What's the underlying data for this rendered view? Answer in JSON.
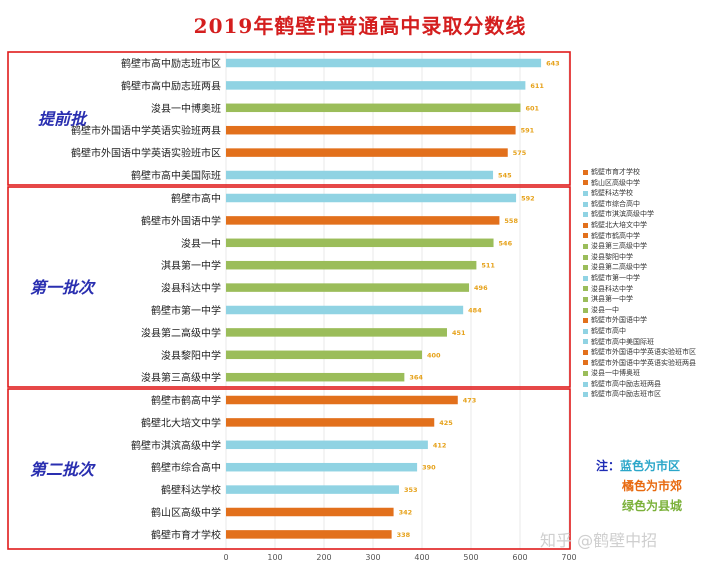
{
  "title": "2019年鹤壁市普通高中录取分数线",
  "chart_data": {
    "type": "bar",
    "orientation": "horizontal",
    "xlim": [
      0,
      700
    ],
    "xticks": [
      0,
      100,
      200,
      300,
      400,
      500,
      600,
      700
    ],
    "grid": true,
    "legend_position": "right",
    "colors": {
      "city": "#90d3e3",
      "suburb": "#e2701c",
      "county": "#9bbd5a",
      "value_label": "#e6a21b",
      "group_border": "#e01b1b",
      "group_label": "#2a2fb0"
    },
    "groups": [
      {
        "label": "提前批",
        "bars": [
          {
            "name": "鹤壁市高中励志班市区",
            "value": 643,
            "cat": "city"
          },
          {
            "name": "鹤壁市高中励志班两县",
            "value": 611,
            "cat": "city"
          },
          {
            "name": "浚县一中博奥班",
            "value": 601,
            "cat": "county"
          },
          {
            "name": "鹤壁市外国语中学英语实验班两县",
            "value": 591,
            "cat": "suburb"
          },
          {
            "name": "鹤壁市外国语中学英语实验班市区",
            "value": 575,
            "cat": "suburb"
          },
          {
            "name": "鹤壁市高中美国际班",
            "value": 545,
            "cat": "city"
          }
        ]
      },
      {
        "label": "第一批次",
        "bars": [
          {
            "name": "鹤壁市高中",
            "value": 592,
            "cat": "city"
          },
          {
            "name": "鹤壁市外国语中学",
            "value": 558,
            "cat": "suburb"
          },
          {
            "name": "浚县一中",
            "value": 546,
            "cat": "county"
          },
          {
            "name": "淇县第一中学",
            "value": 511,
            "cat": "county"
          },
          {
            "name": "浚县科达中学",
            "value": 496,
            "cat": "county"
          },
          {
            "name": "鹤壁市第一中学",
            "value": 484,
            "cat": "city"
          },
          {
            "name": "浚县第二高级中学",
            "value": 451,
            "cat": "county"
          },
          {
            "name": "浚县黎阳中学",
            "value": 400,
            "cat": "county"
          },
          {
            "name": "浚县第三高级中学",
            "value": 364,
            "cat": "county"
          }
        ]
      },
      {
        "label": "第二批次",
        "bars": [
          {
            "name": "鹤壁市鹤高中学",
            "value": 473,
            "cat": "suburb"
          },
          {
            "name": "鹤壁北大培文中学",
            "value": 425,
            "cat": "suburb"
          },
          {
            "name": "鹤壁市淇滨高级中学",
            "value": 412,
            "cat": "city"
          },
          {
            "name": "鹤壁市综合高中",
            "value": 390,
            "cat": "city"
          },
          {
            "name": "鹤壁科达学校",
            "value": 353,
            "cat": "city"
          },
          {
            "name": "鹤山区高级中学",
            "value": 342,
            "cat": "suburb"
          },
          {
            "name": "鹤壁市育才学校",
            "value": 338,
            "cat": "suburb"
          }
        ]
      }
    ],
    "legend": [
      {
        "label": "鹤壁市育才学校",
        "cat": "suburb"
      },
      {
        "label": "鹤山区高级中学",
        "cat": "suburb"
      },
      {
        "label": "鹤壁科达学校",
        "cat": "city"
      },
      {
        "label": "鹤壁市综合高中",
        "cat": "city"
      },
      {
        "label": "鹤壁市淇滨高级中学",
        "cat": "city"
      },
      {
        "label": "鹤壁北大培文中学",
        "cat": "suburb"
      },
      {
        "label": "鹤壁市鹤高中学",
        "cat": "suburb"
      },
      {
        "label": "浚县第三高级中学",
        "cat": "county"
      },
      {
        "label": "浚县黎阳中学",
        "cat": "county"
      },
      {
        "label": "浚县第二高级中学",
        "cat": "county"
      },
      {
        "label": "鹤壁市第一中学",
        "cat": "city"
      },
      {
        "label": "浚县科达中学",
        "cat": "county"
      },
      {
        "label": "淇县第一中学",
        "cat": "county"
      },
      {
        "label": "浚县一中",
        "cat": "county"
      },
      {
        "label": "鹤壁市外国语中学",
        "cat": "suburb"
      },
      {
        "label": "鹤壁市高中",
        "cat": "city"
      },
      {
        "label": "鹤壁市高中美国际班",
        "cat": "city"
      },
      {
        "label": "鹤壁市外国语中学英语实验班市区",
        "cat": "suburb"
      },
      {
        "label": "鹤壁市外国语中学英语实验班两县",
        "cat": "suburb"
      },
      {
        "label": "浚县一中博奥班",
        "cat": "county"
      },
      {
        "label": "鹤壁市高中励志班两县",
        "cat": "city"
      },
      {
        "label": "鹤壁市高中励志班市区",
        "cat": "city"
      }
    ]
  },
  "note": {
    "label": "注：",
    "lines": [
      "蓝色为市区",
      "橘色为市郊",
      "绿色为县城"
    ]
  },
  "watermark": "知乎 @鹤壁中招"
}
